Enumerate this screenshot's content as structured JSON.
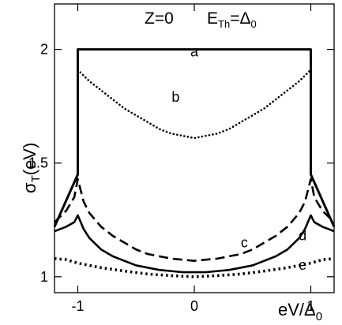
{
  "chart_data": {
    "type": "line",
    "title_left": "Z=0",
    "title_right_main": "E",
    "title_right_sub": "Th",
    "title_right_eq": "=Δ",
    "title_right_eq_sub": "0",
    "xlabel_main": "eV/Δ",
    "xlabel_sub": "0",
    "ylabel_main": "σ",
    "ylabel_sub": "T",
    "ylabel_unit": "(eV)",
    "xlim": [
      -1.2,
      1.2
    ],
    "ylim": [
      0.93,
      2.2
    ],
    "x_ticks": [
      -1,
      0,
      1
    ],
    "x_tick_labels": [
      "-1",
      "0",
      "1"
    ],
    "y_ticks": [
      1,
      1.5,
      2
    ],
    "y_tick_labels": [
      "1",
      "1.5",
      "2"
    ],
    "series": [
      {
        "name": "a",
        "style": "solid-thick",
        "color": "#000000",
        "x": [
          -1.2,
          -1.0,
          -1.0,
          1.0,
          1.0,
          1.2
        ],
        "y": [
          1.22,
          1.45,
          2.0,
          2.0,
          1.45,
          1.22
        ]
      },
      {
        "name": "b",
        "style": "dotted",
        "color": "#000000",
        "x": [
          -1.0,
          -0.9,
          -0.8,
          -0.7,
          -0.6,
          -0.5,
          -0.4,
          -0.3,
          -0.2,
          -0.1,
          0,
          0.1,
          0.2,
          0.3,
          0.4,
          0.5,
          0.6,
          0.7,
          0.8,
          0.9,
          1.0
        ],
        "y": [
          1.91,
          1.86,
          1.82,
          1.78,
          1.74,
          1.71,
          1.68,
          1.65,
          1.63,
          1.62,
          1.61,
          1.62,
          1.63,
          1.65,
          1.68,
          1.71,
          1.74,
          1.78,
          1.82,
          1.86,
          1.91
        ]
      },
      {
        "name": "c",
        "style": "dashed",
        "color": "#000000",
        "x": [
          -1.2,
          -1.1,
          -1.03,
          -1.0,
          -0.95,
          -0.9,
          -0.8,
          -0.7,
          -0.6,
          -0.5,
          -0.4,
          -0.3,
          -0.2,
          -0.1,
          0,
          0.1,
          0.2,
          0.3,
          0.4,
          0.5,
          0.6,
          0.7,
          0.8,
          0.9,
          0.95,
          1.0,
          1.03,
          1.1,
          1.2
        ],
        "y": [
          1.24,
          1.29,
          1.35,
          1.43,
          1.33,
          1.28,
          1.22,
          1.18,
          1.15,
          1.12,
          1.1,
          1.09,
          1.08,
          1.075,
          1.07,
          1.075,
          1.08,
          1.09,
          1.1,
          1.12,
          1.15,
          1.18,
          1.22,
          1.28,
          1.33,
          1.43,
          1.35,
          1.29,
          1.24
        ]
      },
      {
        "name": "d",
        "style": "solid",
        "color": "#000000",
        "x": [
          -1.2,
          -1.1,
          -1.03,
          -1.0,
          -0.95,
          -0.9,
          -0.8,
          -0.7,
          -0.6,
          -0.5,
          -0.4,
          -0.3,
          -0.2,
          -0.1,
          0,
          0.1,
          0.2,
          0.3,
          0.4,
          0.5,
          0.6,
          0.7,
          0.8,
          0.9,
          0.95,
          1.0,
          1.03,
          1.1,
          1.2
        ],
        "y": [
          1.2,
          1.22,
          1.24,
          1.27,
          1.21,
          1.17,
          1.12,
          1.09,
          1.07,
          1.05,
          1.04,
          1.03,
          1.025,
          1.02,
          1.02,
          1.02,
          1.025,
          1.03,
          1.04,
          1.05,
          1.07,
          1.09,
          1.12,
          1.17,
          1.21,
          1.27,
          1.24,
          1.22,
          1.2
        ]
      },
      {
        "name": "e",
        "style": "dotted-thick",
        "color": "#000000",
        "x": [
          -1.2,
          -1.1,
          -1.0,
          -0.8,
          -0.6,
          -0.4,
          -0.2,
          0,
          0.2,
          0.4,
          0.6,
          0.8,
          1.0,
          1.1,
          1.2
        ],
        "y": [
          1.08,
          1.075,
          1.06,
          1.04,
          1.025,
          1.012,
          1.005,
          1.0,
          1.005,
          1.012,
          1.025,
          1.04,
          1.06,
          1.075,
          1.08
        ]
      }
    ],
    "curve_labels": [
      {
        "text": "a",
        "x": 0.0,
        "y": 1.97
      },
      {
        "text": "b",
        "x": -0.16,
        "y": 1.77
      },
      {
        "text": "c",
        "x": 0.43,
        "y": 1.13
      },
      {
        "text": "d",
        "x": 0.93,
        "y": 1.16
      },
      {
        "text": "e",
        "x": 0.93,
        "y": 1.03
      }
    ],
    "grid": false,
    "legend": "none"
  }
}
